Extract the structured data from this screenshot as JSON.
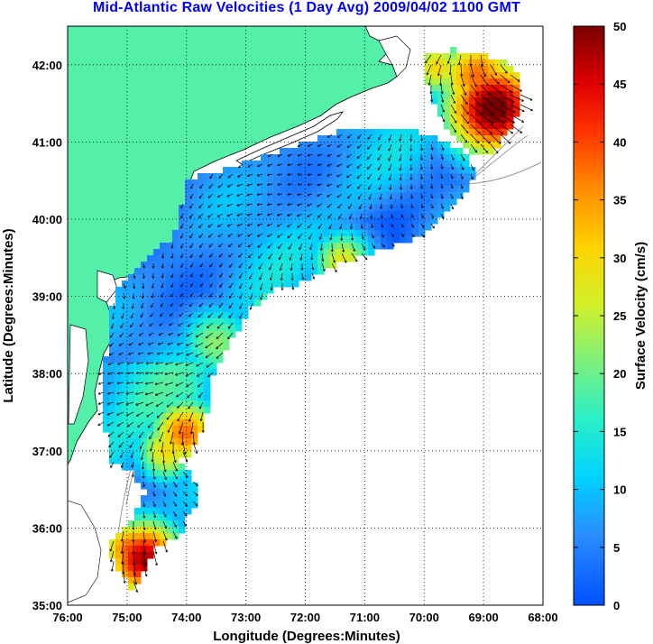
{
  "title": "Mid-Atlantic Raw Velocities (1 Day Avg) 2009/04/02 1100 GMT",
  "map": {
    "xlabel": "Longitude (Degrees:Minutes)",
    "ylabel": "Latitude (Degrees:Minutes)",
    "lon_ticks": [
      "76:00",
      "75:00",
      "74:00",
      "73:00",
      "72:00",
      "71:00",
      "70:00",
      "69:00",
      "68:00"
    ],
    "lat_ticks": [
      "42:00",
      "41:00",
      "40:00",
      "39:00",
      "38:00",
      "37:00",
      "36:00",
      "35:00"
    ],
    "lon_range": [
      -76,
      -68
    ],
    "lat_range": [
      35,
      42.5
    ],
    "land_color": "#55f0a8",
    "grid": "dotted"
  },
  "colorbar": {
    "label": "Surface Velocity (cm/s)",
    "ticks": [
      "0",
      "5",
      "10",
      "15",
      "20",
      "25",
      "30",
      "35",
      "40",
      "45",
      "50"
    ],
    "range": [
      0,
      50
    ],
    "colormap": "jet"
  }
}
